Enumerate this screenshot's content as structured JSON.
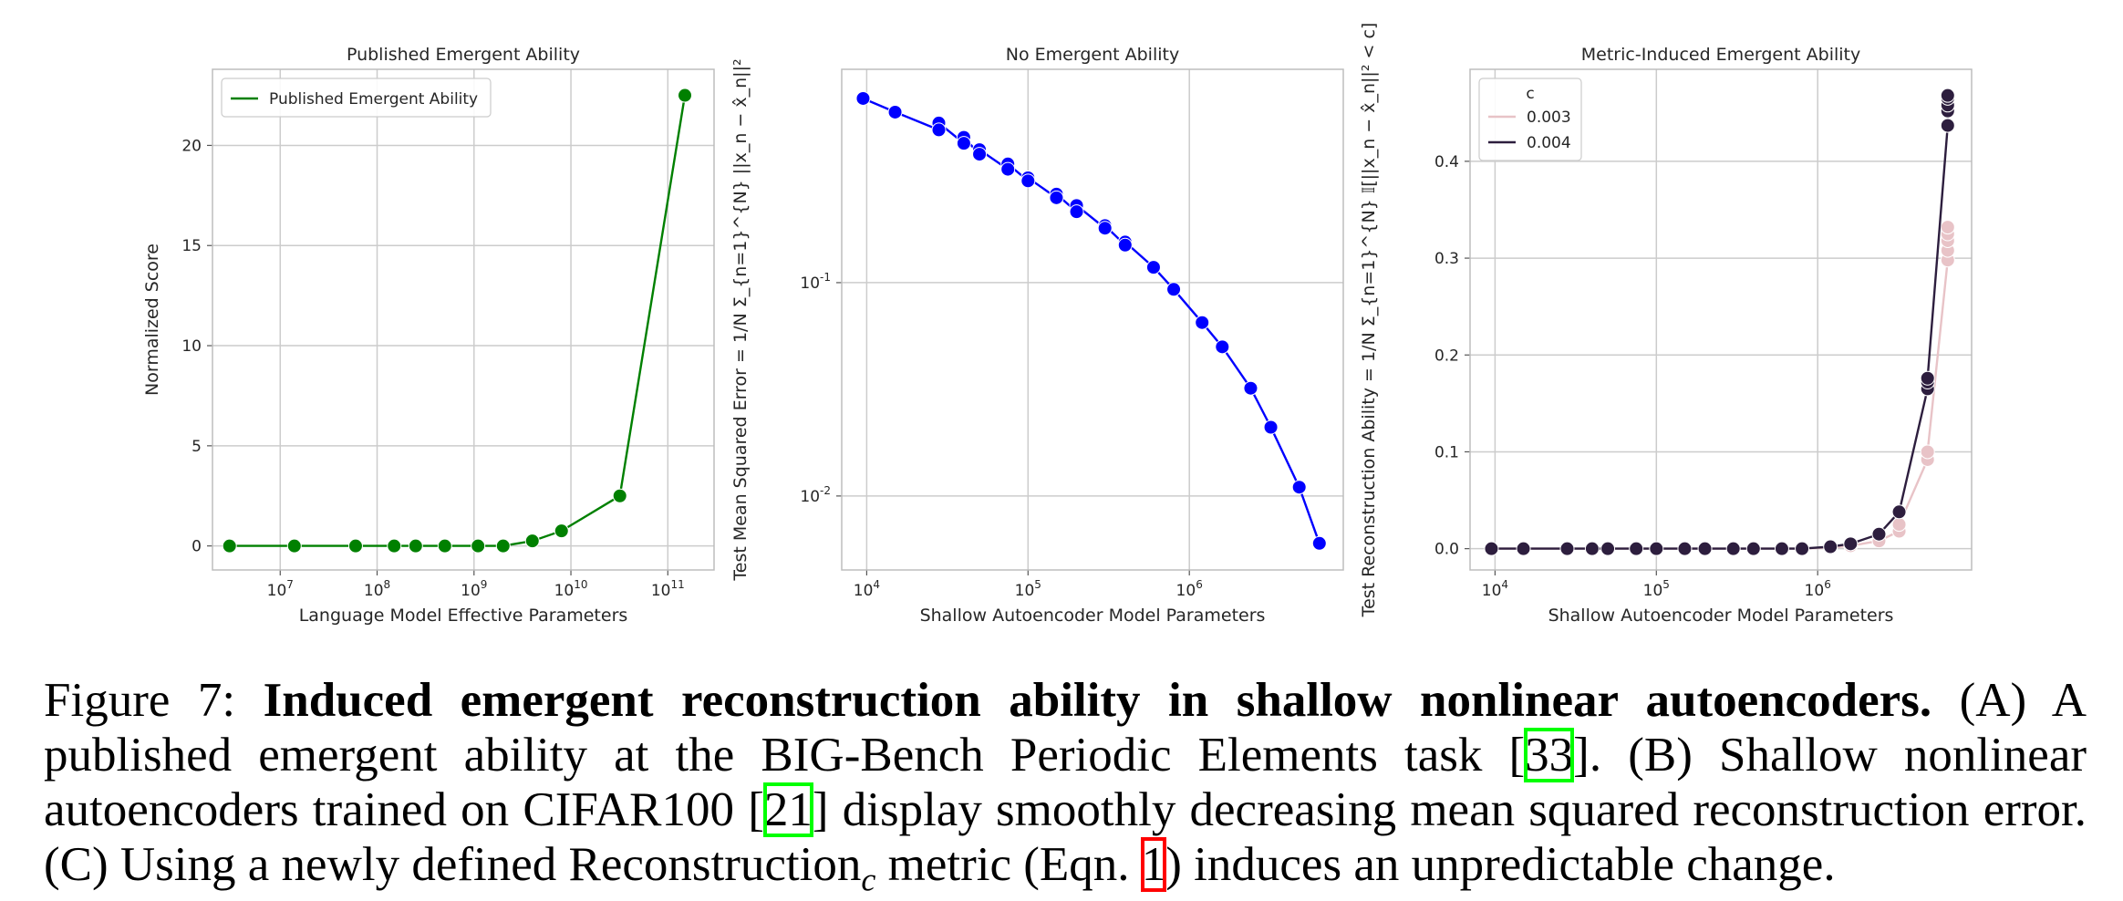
{
  "chart_data": [
    {
      "type": "line",
      "title": "Published Emergent Ability",
      "xlabel": "Language Model Effective Parameters",
      "ylabel": "Normalized Score",
      "xscale": "log",
      "xlim": [
        2000000,
        300000000000
      ],
      "ylim": [
        -1.2,
        23.8
      ],
      "xticks": [
        {
          "value": 10000000,
          "label": "10^7"
        },
        {
          "value": 100000000,
          "label": "10^8"
        },
        {
          "value": 1000000000,
          "label": "10^9"
        },
        {
          "value": 10000000000,
          "label": "10^10"
        },
        {
          "value": 100000000000,
          "label": "10^11"
        }
      ],
      "yticks": [
        0,
        5,
        10,
        15,
        20
      ],
      "grid": true,
      "legend": {
        "placement": "top-left",
        "entries": [
          "Published Emergent Ability"
        ]
      },
      "series": [
        {
          "name": "Published Emergent Ability",
          "color": "#008000",
          "x": [
            3000000,
            14000000,
            60000000,
            150000000,
            250000000,
            500000000,
            1100000000,
            2000000000,
            4000000000,
            8000000000,
            32000000000,
            150000000000
          ],
          "y": [
            0,
            0,
            0,
            0,
            0,
            0,
            0,
            0,
            0.25,
            0.75,
            2.5,
            22.5
          ]
        }
      ]
    },
    {
      "type": "line",
      "title": "No Emergent Ability",
      "xlabel": "Shallow Autoencoder Model Parameters",
      "ylabel": "Test Mean Squared Error",
      "ylabel_formula": "1/N Σ_{n=1}^{N} ||x_n − x̂_n||²",
      "xscale": "log",
      "yscale": "log",
      "xlim": [
        7000,
        9000000
      ],
      "ylim": [
        0.0045,
        1.0
      ],
      "xticks": [
        {
          "value": 10000,
          "label": "10^4"
        },
        {
          "value": 100000,
          "label": "10^5"
        },
        {
          "value": 1000000,
          "label": "10^6"
        }
      ],
      "yticks": [
        {
          "value": 0.01,
          "label": "10^-2"
        },
        {
          "value": 0.1,
          "label": "10^-1"
        }
      ],
      "grid": true,
      "series": [
        {
          "color": "#0000ff",
          "x": [
            9500,
            15000,
            28000,
            28000,
            40000,
            40000,
            50000,
            50000,
            75000,
            75000,
            100000,
            100000,
            150000,
            150000,
            200000,
            200000,
            300000,
            300000,
            400000,
            400000,
            600000,
            800000,
            1200000,
            1600000,
            2400000,
            3200000,
            4800000,
            6400000
          ],
          "y": [
            0.73,
            0.63,
            0.56,
            0.52,
            0.48,
            0.45,
            0.42,
            0.4,
            0.36,
            0.34,
            0.31,
            0.3,
            0.26,
            0.25,
            0.23,
            0.215,
            0.185,
            0.18,
            0.155,
            0.15,
            0.118,
            0.093,
            0.065,
            0.05,
            0.032,
            0.021,
            0.011,
            0.006
          ]
        }
      ]
    },
    {
      "type": "line",
      "title": "Metric-Induced Emergent Ability",
      "xlabel": "Shallow Autoencoder Model Parameters",
      "ylabel": "Test Reconstruction Ability",
      "ylabel_formula": "1/N Σ_{n=1}^{N} 𝕀[||x_n − x̂_n||² < c]",
      "xscale": "log",
      "xlim": [
        7000,
        9000000
      ],
      "ylim": [
        -0.022,
        0.495
      ],
      "xticks": [
        {
          "value": 10000,
          "label": "10^4"
        },
        {
          "value": 100000,
          "label": "10^5"
        },
        {
          "value": 1000000,
          "label": "10^6"
        }
      ],
      "yticks": [
        0.0,
        0.1,
        0.2,
        0.3,
        0.4
      ],
      "grid": true,
      "legend": {
        "placement": "top-left",
        "title": "c",
        "entries": [
          "0.003",
          "0.004"
        ]
      },
      "series": [
        {
          "name": "0.003",
          "color": "#e8c3c7",
          "x": [
            9500,
            15000,
            28000,
            40000,
            50000,
            75000,
            100000,
            150000,
            200000,
            300000,
            400000,
            600000,
            800000,
            1200000,
            1600000,
            2400000,
            3200000,
            3200000,
            4800000,
            4800000,
            6400000,
            6400000,
            6400000,
            6400000,
            6400000
          ],
          "y": [
            0,
            0,
            0,
            0,
            0,
            0,
            0,
            0,
            0,
            0,
            0,
            0,
            0,
            0.001,
            0.003,
            0.008,
            0.018,
            0.025,
            0.092,
            0.1,
            0.298,
            0.308,
            0.318,
            0.325,
            0.332
          ]
        },
        {
          "name": "0.004",
          "color": "#2d1e3e",
          "x": [
            9500,
            15000,
            28000,
            40000,
            50000,
            75000,
            100000,
            150000,
            200000,
            300000,
            400000,
            600000,
            800000,
            1200000,
            1600000,
            2400000,
            3200000,
            4800000,
            4800000,
            4800000,
            6400000,
            6400000,
            6400000,
            6400000,
            6400000
          ],
          "y": [
            0,
            0,
            0,
            0,
            0,
            0,
            0,
            0,
            0,
            0,
            0,
            0,
            0,
            0.002,
            0.005,
            0.015,
            0.038,
            0.165,
            0.172,
            0.176,
            0.437,
            0.452,
            0.458,
            0.465,
            0.468
          ]
        }
      ]
    }
  ],
  "caption": {
    "figure_label": "Figure 7:",
    "bold_title": "Induced emergent reconstruction ability in shallow nonlinear autoencoders.",
    "text_a": "(A) A published emergent ability at the BIG-Bench Periodic Elements task [",
    "cite_1": "33",
    "text_b": "]. (B) Shallow nonlinear autoencoders trained on CIFAR100 [",
    "cite_2": "21",
    "text_c": "] display smoothly decreasing mean squared reconstruction error. (C) Using a newly defined Reconstruction",
    "subscript": "c",
    "text_d": " metric (Eqn. ",
    "eqn_ref": "1",
    "text_e": ") induces an unpredictable change."
  }
}
